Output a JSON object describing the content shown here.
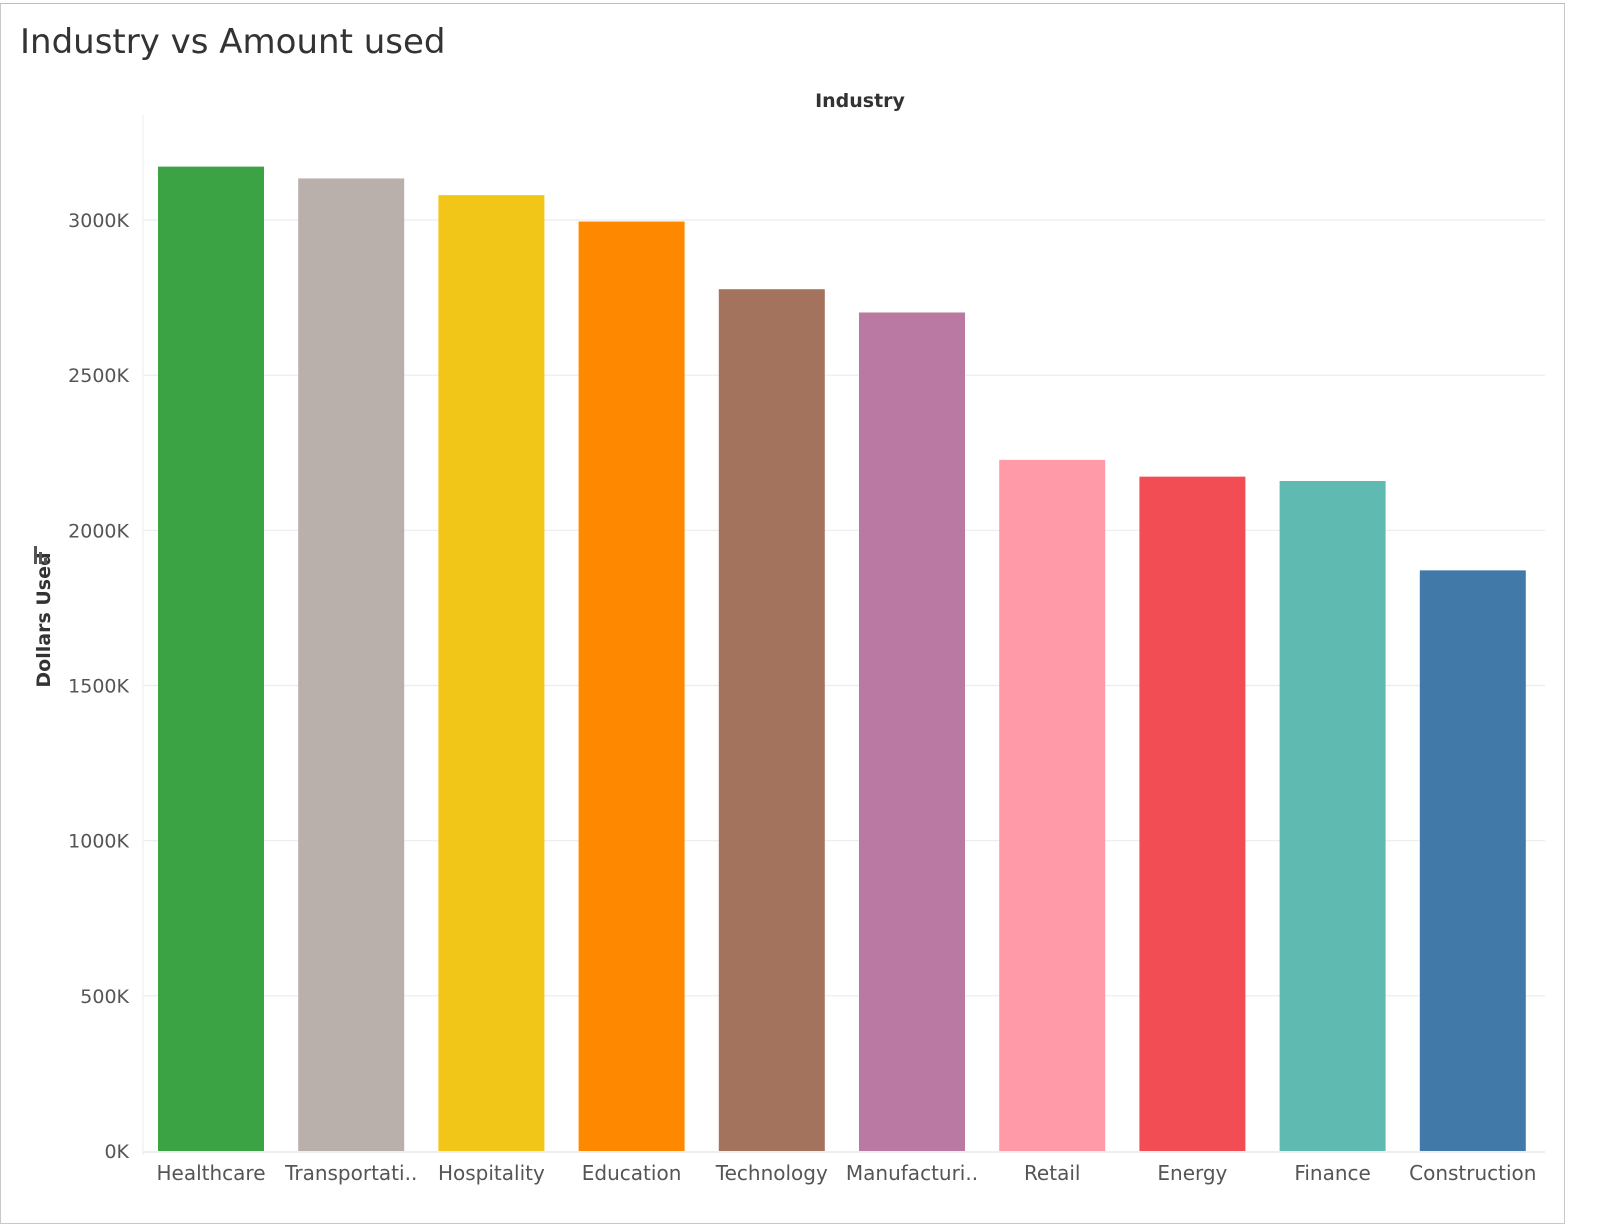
{
  "chart_data": {
    "type": "bar",
    "title": "Industry vs Amount used",
    "xlabel": "Industry",
    "ylabel": "Dollars Used",
    "categories": [
      "Healthcare",
      "Transportati..",
      "Hospitality",
      "Education",
      "Technology",
      "Manufacturi..",
      "Retail",
      "Energy",
      "Finance",
      "Construction"
    ],
    "values": [
      3172000,
      3134000,
      3080000,
      2995000,
      2777000,
      2702000,
      2227000,
      2173000,
      2159000,
      1871000
    ],
    "colors": [
      "#3CA345",
      "#BAB0AB",
      "#F2C618",
      "#FF8801",
      "#A4735E",
      "#BA79A3",
      "#FF9BA8",
      "#F24C55",
      "#5FBAB2",
      "#4179A9"
    ],
    "ylim": [
      0,
      3300000
    ],
    "yticks": [
      {
        "value": 0,
        "label": "0K"
      },
      {
        "value": 500000,
        "label": "500K"
      },
      {
        "value": 1000000,
        "label": "1000K"
      },
      {
        "value": 1500000,
        "label": "1500K"
      },
      {
        "value": 2000000,
        "label": "2000K"
      },
      {
        "value": 2500000,
        "label": "2500K"
      },
      {
        "value": 3000000,
        "label": "3000K"
      }
    ],
    "grid": true,
    "legend": "none"
  },
  "toolbar": {
    "sort_icon": "sort-descending-icon"
  }
}
